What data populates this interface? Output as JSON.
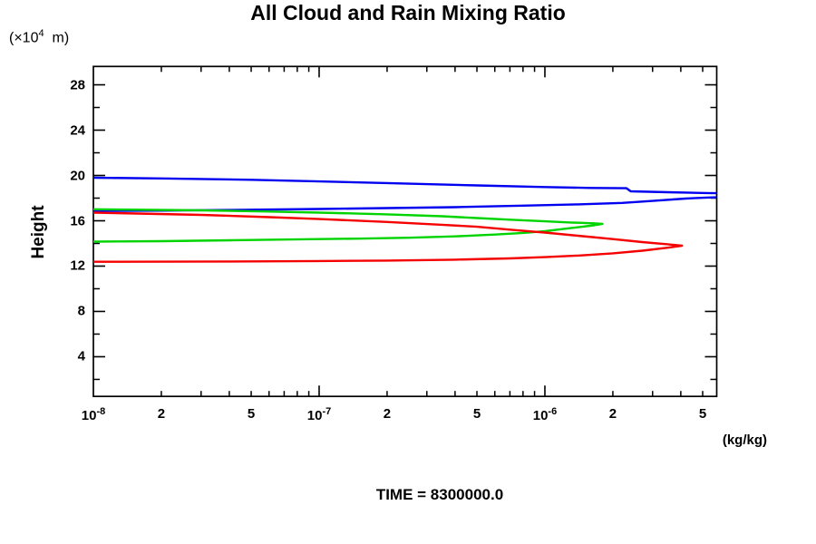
{
  "chart_data": {
    "type": "line",
    "title": "All Cloud and Rain Mixing Ratio",
    "footer": "TIME = 8300000.0",
    "x_axis": {
      "scale": "log",
      "min": 1e-08,
      "max": 5.77e-06,
      "unit": "(kg/kg)",
      "decades": [
        1e-08,
        1e-07,
        1e-06
      ],
      "tick_labels": [
        {
          "v": 1e-08,
          "base": "10",
          "exp": "-8"
        },
        {
          "v": 2e-08,
          "base": "2"
        },
        {
          "v": 5e-08,
          "base": "5"
        },
        {
          "v": 1e-07,
          "base": "10",
          "exp": "-7"
        },
        {
          "v": 2e-07,
          "base": "2"
        },
        {
          "v": 5e-07,
          "base": "5"
        },
        {
          "v": 1e-06,
          "base": "10",
          "exp": "-6"
        },
        {
          "v": 2e-06,
          "base": "2"
        },
        {
          "v": 5e-06,
          "base": "5"
        }
      ]
    },
    "y_axis": {
      "scale": "linear",
      "min": 0.5,
      "max": 29.62,
      "label": "Height",
      "unit_prefix": "(×10",
      "unit_exp": "4",
      "unit_suffix": "  m)",
      "major_ticks": [
        4,
        8,
        12,
        16,
        20,
        24,
        28
      ],
      "minor_ticks": [
        2,
        6,
        10,
        14,
        18,
        22,
        26
      ]
    },
    "series": [
      {
        "name": "blue-profile",
        "color": "#0000f0",
        "points": [
          [
            1e-08,
            19.8
          ],
          [
            2e-08,
            19.74
          ],
          [
            5e-08,
            19.62
          ],
          [
            1e-07,
            19.47
          ],
          [
            2e-07,
            19.33
          ],
          [
            5e-07,
            19.12
          ],
          [
            1e-06,
            18.98
          ],
          [
            1.6e-06,
            18.9
          ],
          [
            2.3e-06,
            18.87
          ],
          [
            2.4e-06,
            18.6
          ],
          [
            3.5e-06,
            18.52
          ],
          [
            5.2e-06,
            18.45
          ],
          [
            7.5e-06,
            18.4
          ],
          [
            8.6e-06,
            18.25
          ],
          [
            7.5e-06,
            18.13
          ],
          [
            5.2e-06,
            18.05
          ],
          [
            4.2e-06,
            17.96
          ],
          [
            3e-06,
            17.75
          ],
          [
            2.2e-06,
            17.58
          ],
          [
            1.4e-06,
            17.45
          ],
          [
            8e-07,
            17.34
          ],
          [
            4e-07,
            17.2
          ],
          [
            2e-07,
            17.12
          ],
          [
            1e-07,
            17.04
          ],
          [
            4e-08,
            16.95
          ],
          [
            2e-08,
            16.9
          ],
          [
            1e-08,
            16.87
          ]
        ]
      },
      {
        "name": "green-profile",
        "color": "#00d400",
        "points": [
          [
            1e-08,
            17.02
          ],
          [
            3e-08,
            16.92
          ],
          [
            6e-08,
            16.82
          ],
          [
            1e-07,
            16.72
          ],
          [
            2e-07,
            16.57
          ],
          [
            3.5e-07,
            16.4
          ],
          [
            5e-07,
            16.24
          ],
          [
            7e-07,
            16.1
          ],
          [
            1e-06,
            15.95
          ],
          [
            1.3e-06,
            15.85
          ],
          [
            1.65e-06,
            15.78
          ],
          [
            1.8e-06,
            15.72
          ],
          [
            1.65e-06,
            15.6
          ],
          [
            1.3e-06,
            15.35
          ],
          [
            1e-06,
            15.08
          ],
          [
            8e-07,
            14.93
          ],
          [
            6e-07,
            14.78
          ],
          [
            4e-07,
            14.62
          ],
          [
            2.5e-07,
            14.5
          ],
          [
            1.5e-07,
            14.42
          ],
          [
            1e-07,
            14.38
          ],
          [
            5e-08,
            14.3
          ],
          [
            2e-08,
            14.2
          ],
          [
            1e-08,
            14.16
          ]
        ]
      },
      {
        "name": "red-profile",
        "color": "#f50000",
        "points": [
          [
            1e-08,
            16.72
          ],
          [
            3e-08,
            16.52
          ],
          [
            6e-08,
            16.32
          ],
          [
            1e-07,
            16.15
          ],
          [
            2e-07,
            15.9
          ],
          [
            3.5e-07,
            15.65
          ],
          [
            5e-07,
            15.47
          ],
          [
            7e-07,
            15.22
          ],
          [
            1e-06,
            14.96
          ],
          [
            1.4e-06,
            14.68
          ],
          [
            2e-06,
            14.38
          ],
          [
            2.7e-06,
            14.12
          ],
          [
            3.5e-06,
            13.93
          ],
          [
            4.05e-06,
            13.8
          ],
          [
            3.5e-06,
            13.62
          ],
          [
            2.7e-06,
            13.36
          ],
          [
            2e-06,
            13.13
          ],
          [
            1.4e-06,
            12.93
          ],
          [
            1e-06,
            12.79
          ],
          [
            7e-07,
            12.68
          ],
          [
            4e-07,
            12.57
          ],
          [
            2e-07,
            12.49
          ],
          [
            1e-07,
            12.45
          ],
          [
            4e-08,
            12.41
          ],
          [
            1e-08,
            12.38
          ]
        ]
      }
    ]
  }
}
